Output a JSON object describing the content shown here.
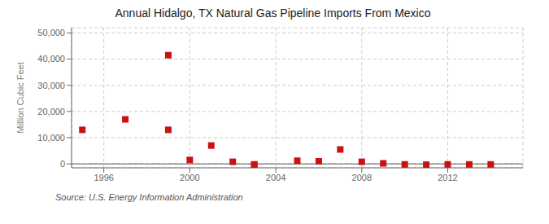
{
  "chart_data": {
    "type": "scatter",
    "title": "Annual Hidalgo, TX Natural Gas Pipeline Imports From Mexico",
    "y_label": "Million Cubic Feet",
    "annotations": [
      "Source: U.S. Energy Information Administration"
    ],
    "x": [
      1995,
      1997,
      1999,
      1999,
      2000,
      2001,
      2002,
      2003,
      2003,
      2005,
      2006,
      2007,
      2008,
      2009,
      2010,
      2011,
      2012,
      2013,
      2014
    ],
    "values": [
      13000,
      17000,
      13000,
      41500,
      1500,
      7000,
      800,
      -200,
      -300,
      1200,
      1000,
      5500,
      800,
      200,
      -200,
      -300,
      -200,
      -200,
      -200
    ],
    "color": "#cc1111",
    "marker": "square",
    "xlim": [
      1994.5,
      2015.5
    ],
    "ylim": [
      -1500,
      52000
    ],
    "xticks": [
      1996,
      2000,
      2004,
      2008,
      2012
    ],
    "yticks": [
      0,
      {
        "value": 10000,
        "label": "10,000"
      },
      {
        "value": 20000,
        "label": "20,000"
      },
      {
        "value": 30000,
        "label": "30,000"
      },
      {
        "value": 40000,
        "label": "40,000"
      },
      {
        "value": 50000,
        "label": "50,000"
      }
    ],
    "grid": true
  }
}
